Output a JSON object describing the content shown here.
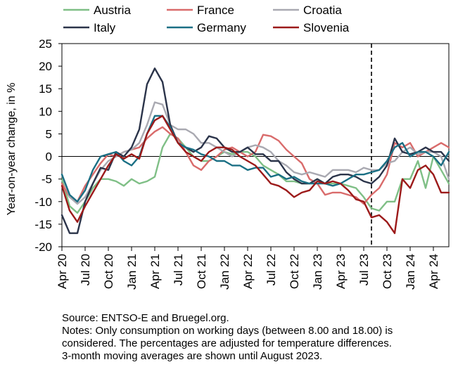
{
  "chart_data": {
    "type": "line",
    "ylabel": "Year-on-year change, in %",
    "ylim": [
      -20,
      25
    ],
    "yticks": [
      25,
      20,
      15,
      10,
      5,
      0,
      -5,
      -10,
      -15,
      -20
    ],
    "xtick_labels": [
      "Apr 20",
      "Jul 20",
      "Oct 20",
      "Jan 21",
      "Apr 21",
      "Jul 21",
      "Oct 21",
      "Jan 22",
      "Apr 22",
      "Jul 22",
      "Oct 22",
      "Jan 23",
      "Apr 23",
      "Jul 23",
      "Oct 23",
      "Jan 24",
      "Apr 24"
    ],
    "x_start": "Apr 20",
    "x_end": "Apr 24",
    "vertical_marker": "Aug 23",
    "legend_position": "top",
    "series": [
      {
        "name": "Austria",
        "color": "#7fbf86",
        "values": [
          -5,
          -11,
          -12.5,
          -10,
          -7,
          -5,
          -5,
          -5.5,
          -6.5,
          -5,
          -6,
          -5.5,
          -4.5,
          2,
          5,
          4,
          2,
          0,
          -1,
          -1,
          0,
          1,
          0.5,
          1,
          1,
          0,
          -2,
          -3,
          -4,
          -5.5,
          -5.5,
          -6,
          -6,
          -5,
          -6,
          -6,
          -6,
          -6.5,
          -7,
          -9,
          -11.5,
          -12,
          -10,
          -10,
          -5,
          -5,
          -1,
          -7,
          0,
          -3,
          -6
        ]
      },
      {
        "name": "France",
        "color": "#d96b6b",
        "values": [
          -6,
          -9,
          -10,
          -6.5,
          -4,
          -1.5,
          0.5,
          0,
          1,
          1.5,
          2,
          4,
          5.5,
          6.5,
          5,
          4,
          1,
          -2,
          -3,
          -1,
          0,
          1.5,
          2,
          1,
          0,
          1,
          4.8,
          4.5,
          3.5,
          1.5,
          0,
          -1.5,
          -5,
          -6,
          -8.5,
          -8,
          -8,
          -8.5,
          -9,
          -10.5,
          -8.5,
          -7,
          -4,
          3,
          2,
          3,
          0,
          1,
          2,
          3,
          2
        ]
      },
      {
        "name": "Croatia",
        "color": "#a9a9b1",
        "values": [
          -4,
          -9,
          -10.5,
          -9,
          -6,
          -3,
          -1,
          0,
          1,
          1.5,
          3,
          7,
          12,
          11.5,
          7,
          6,
          6,
          5,
          3,
          3,
          2,
          1,
          0,
          1,
          2,
          2.5,
          2,
          1,
          -1,
          -2,
          -3.5,
          -4,
          -3.5,
          -4,
          -4.5,
          -3,
          -3,
          -3,
          -3.5,
          -2.5,
          -3,
          -3,
          -1.5,
          -1,
          1,
          2,
          0.5,
          1,
          1,
          0,
          -5
        ]
      },
      {
        "name": "Italy",
        "color": "#2b344a",
        "values": [
          -13,
          -17,
          -17,
          -10,
          -6,
          -2.5,
          -3,
          1,
          0,
          2,
          6,
          16,
          19.5,
          16.5,
          7,
          3,
          2,
          1,
          2,
          4.5,
          4,
          2,
          1,
          1,
          2,
          0.5,
          0.5,
          -1,
          -1,
          -3.5,
          -5,
          -6,
          -6,
          -5,
          -6,
          -4.5,
          -4,
          -4,
          -4.5,
          -5.5,
          -6,
          -4.5,
          -2,
          4,
          1,
          0.5,
          1,
          2,
          1,
          1,
          -1
        ]
      },
      {
        "name": "Germany",
        "color": "#1a6f84",
        "values": [
          -4,
          -8.5,
          -10,
          -7.5,
          -3,
          0,
          0.5,
          1,
          -1,
          -2,
          0,
          5,
          9,
          9,
          6.5,
          3,
          2,
          1.5,
          0.5,
          0,
          -1,
          -1,
          -2,
          -2,
          -3,
          -2.5,
          -2.5,
          -4.5,
          -4,
          -5,
          -4.5,
          -5.5,
          -6,
          -6,
          -6,
          -6.5,
          -6,
          -5,
          -4,
          -4,
          -3.5,
          -3,
          -1,
          2,
          3,
          0,
          1,
          1,
          0,
          -2,
          1
        ]
      },
      {
        "name": "Slovenia",
        "color": "#9c1a1a",
        "values": [
          -6.5,
          -12,
          -14.5,
          -11,
          -8,
          -5,
          -2,
          0.5,
          -0.5,
          0.5,
          -0.5,
          5,
          8,
          9,
          6,
          3,
          1,
          0,
          -1,
          1,
          2,
          2,
          1.5,
          0,
          -1,
          -2,
          -4,
          -6,
          -6.5,
          -7.5,
          -9,
          -8,
          -7.5,
          -5.5,
          -6,
          -5.5,
          -6,
          -7.5,
          -9.5,
          -10,
          -13.5,
          -13,
          -14.5,
          -17,
          -5,
          -7,
          -3,
          -2,
          -4,
          -8,
          -8
        ]
      }
    ]
  },
  "notes": {
    "source": "Source: ENTSO-E and Bruegel.org.",
    "line1": "Notes: Only consumption on working days (between 8.00 and 18.00) is",
    "line2": "considered. The percentages are adjusted for temperature differences.",
    "line3": "3-month moving averages are shown until August 2023."
  }
}
